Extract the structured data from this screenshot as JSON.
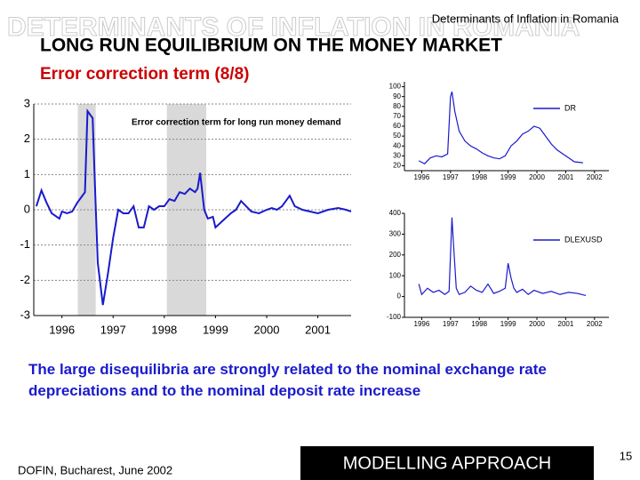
{
  "slide": {
    "watermark": "DETERMINANTS OF INFLATION IN ROMANIA",
    "header": "Determinants of Inflation in Romania",
    "title": "LONG RUN EQUILIBRIUM ON THE MONEY MARKET",
    "subtitle": "Error correction term  (8/8)",
    "body": "The large disequilibria are strongly related to the nominal exchange rate depreciations and to the nominal deposit rate increase",
    "footer": "DOFIN, Bucharest, June 2002",
    "box": "MODELLING APPROACH",
    "page": "15"
  },
  "chart_data": [
    {
      "type": "line",
      "annotation": "Error correction term for long run money demand",
      "xlim": [
        1995.45,
        2001.65
      ],
      "xticks": [
        1996,
        1997,
        1998,
        1999,
        2000,
        2001
      ],
      "ylim": [
        -3,
        3
      ],
      "yticks": [
        -3,
        -2,
        -1,
        0,
        1,
        2,
        3
      ],
      "grid": true,
      "shaded_ranges": [
        [
          1996.31,
          1996.66
        ],
        [
          1998.05,
          1998.82
        ]
      ],
      "x": [
        1995.5,
        1995.6,
        1995.7,
        1995.8,
        1995.95,
        1996.0,
        1996.1,
        1996.2,
        1996.3,
        1996.4,
        1996.45,
        1996.5,
        1996.6,
        1996.65,
        1996.7,
        1996.8,
        1996.9,
        1997.0,
        1997.1,
        1997.2,
        1997.3,
        1997.4,
        1997.5,
        1997.6,
        1997.7,
        1997.8,
        1997.9,
        1998.0,
        1998.1,
        1998.2,
        1998.3,
        1998.4,
        1998.5,
        1998.6,
        1998.65,
        1998.7,
        1998.78,
        1998.85,
        1998.95,
        1999.0,
        1999.15,
        1999.3,
        1999.4,
        1999.5,
        1999.6,
        1999.7,
        1999.85,
        2000.0,
        2000.1,
        2000.2,
        2000.3,
        2000.45,
        2000.55,
        2000.7,
        2000.85,
        2001.0,
        2001.2,
        2001.4,
        2001.55,
        2001.65
      ],
      "series": [
        {
          "color": "#1a1acc",
          "values": [
            0.1,
            0.55,
            0.2,
            -0.1,
            -0.25,
            -0.05,
            -0.1,
            -0.05,
            0.2,
            0.4,
            0.5,
            2.8,
            2.6,
            0.5,
            -1.5,
            -2.7,
            -1.8,
            -0.8,
            0.0,
            -0.1,
            -0.1,
            0.1,
            -0.5,
            -0.5,
            0.1,
            0.0,
            0.1,
            0.1,
            0.3,
            0.25,
            0.5,
            0.45,
            0.6,
            0.5,
            0.6,
            1.05,
            0.0,
            -0.25,
            -0.2,
            -0.5,
            -0.3,
            -0.1,
            0.0,
            0.25,
            0.1,
            -0.05,
            -0.1,
            0.0,
            0.05,
            0.0,
            0.1,
            0.4,
            0.1,
            0.0,
            -0.05,
            -0.1,
            0.0,
            0.05,
            0.0,
            -0.05
          ]
        }
      ]
    },
    {
      "type": "line",
      "xlim": [
        1995.4,
        2002.5
      ],
      "xticks": [
        1996,
        1997,
        1998,
        1999,
        2000,
        2001,
        2002
      ],
      "ylim": [
        15,
        105
      ],
      "yticks": [
        20,
        30,
        40,
        50,
        60,
        70,
        80,
        90,
        100
      ],
      "x": [
        1995.9,
        1996.1,
        1996.3,
        1996.5,
        1996.7,
        1996.9,
        1997.0,
        1997.05,
        1997.15,
        1997.3,
        1997.5,
        1997.7,
        1997.9,
        1998.1,
        1998.3,
        1998.5,
        1998.7,
        1998.9,
        1999.1,
        1999.3,
        1999.5,
        1999.7,
        1999.9,
        2000.1,
        2000.3,
        2000.5,
        2000.7,
        2000.9,
        2001.1,
        2001.3,
        2001.6
      ],
      "series": [
        {
          "name": "DR",
          "color": "#1a1acc",
          "values": [
            25,
            22,
            28,
            30,
            29,
            32,
            90,
            95,
            75,
            55,
            45,
            40,
            37,
            33,
            30,
            28,
            27,
            30,
            40,
            45,
            52,
            55,
            60,
            58,
            50,
            42,
            36,
            32,
            28,
            24,
            23
          ]
        }
      ]
    },
    {
      "type": "line",
      "xlim": [
        1995.4,
        2002.5
      ],
      "xticks": [
        1996,
        1997,
        1998,
        1999,
        2000,
        2001,
        2002
      ],
      "ylim": [
        -100,
        400
      ],
      "yticks": [
        -100,
        0,
        100,
        200,
        300,
        400
      ],
      "x": [
        1995.9,
        1996.0,
        1996.2,
        1996.4,
        1996.6,
        1996.8,
        1996.95,
        1997.05,
        1997.1,
        1997.2,
        1997.3,
        1997.5,
        1997.7,
        1997.9,
        1998.1,
        1998.3,
        1998.5,
        1998.7,
        1998.9,
        1999.0,
        1999.1,
        1999.2,
        1999.3,
        1999.5,
        1999.7,
        1999.9,
        2000.2,
        2000.5,
        2000.8,
        2001.1,
        2001.4,
        2001.7
      ],
      "series": [
        {
          "name": "DLEXUSD",
          "color": "#1a1acc",
          "values": [
            60,
            10,
            40,
            20,
            30,
            10,
            25,
            380,
            260,
            40,
            10,
            20,
            50,
            30,
            20,
            60,
            15,
            25,
            40,
            160,
            90,
            40,
            20,
            35,
            10,
            30,
            15,
            25,
            10,
            20,
            15,
            5
          ]
        }
      ]
    }
  ]
}
